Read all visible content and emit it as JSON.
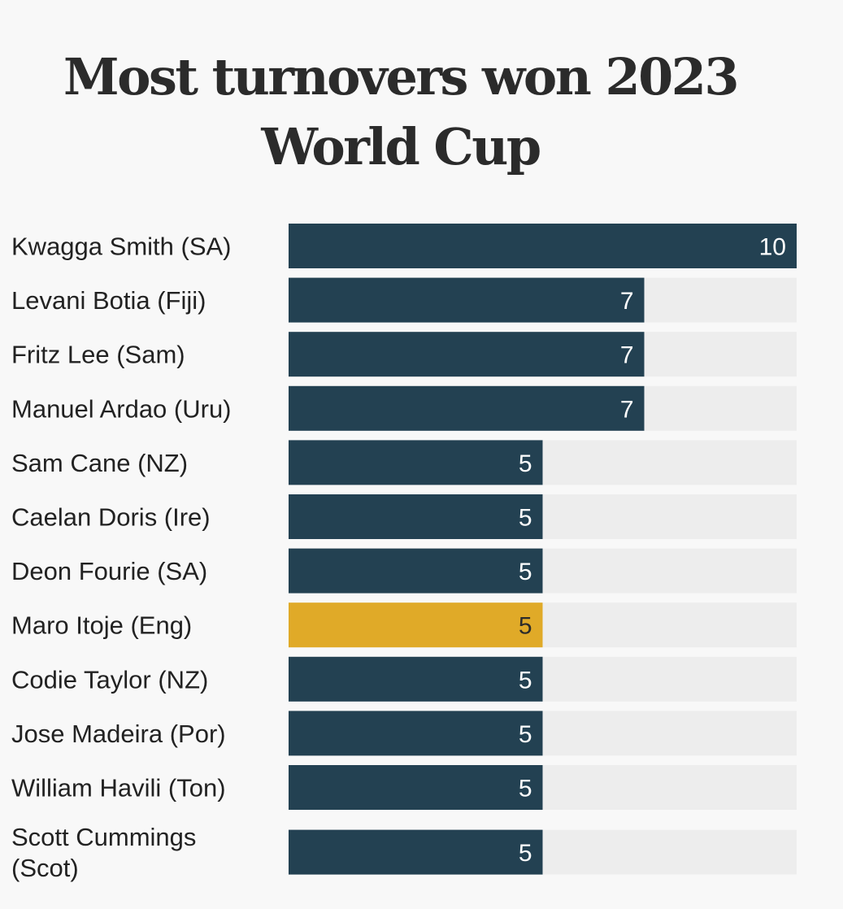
{
  "title_line1": "Most turnovers won 2023",
  "title_line2": "World Cup",
  "colors": {
    "bar": "#234152",
    "highlight": "#e0aa28",
    "track": "#ededed",
    "value_text_on_dark": "#ffffff",
    "value_text_on_highlight": "#2b2b2b"
  },
  "chart_data": {
    "type": "bar",
    "orientation": "horizontal",
    "title": "Most turnovers won 2023 World Cup",
    "xlabel": "",
    "ylabel": "",
    "xlim": [
      0,
      10
    ],
    "grid": false,
    "categories": [
      [
        "Kwagga Smith (SA)"
      ],
      [
        "Levani Botia (Fiji)"
      ],
      [
        "Fritz Lee (Sam)"
      ],
      [
        "Manuel Ardao (Uru)"
      ],
      [
        "Sam Cane (NZ)"
      ],
      [
        "Caelan Doris (Ire)"
      ],
      [
        "Deon Fourie (SA)"
      ],
      [
        "Maro Itoje (Eng)"
      ],
      [
        "Codie Taylor (NZ)"
      ],
      [
        "Jose Madeira (Por)"
      ],
      [
        "William Havili (Ton)"
      ],
      [
        "Scott Cummings",
        "(Scot)"
      ]
    ],
    "values": [
      10,
      7,
      7,
      7,
      5,
      5,
      5,
      5,
      5,
      5,
      5,
      5
    ],
    "highlight": [
      "Maro Itoje (Eng)"
    ]
  }
}
